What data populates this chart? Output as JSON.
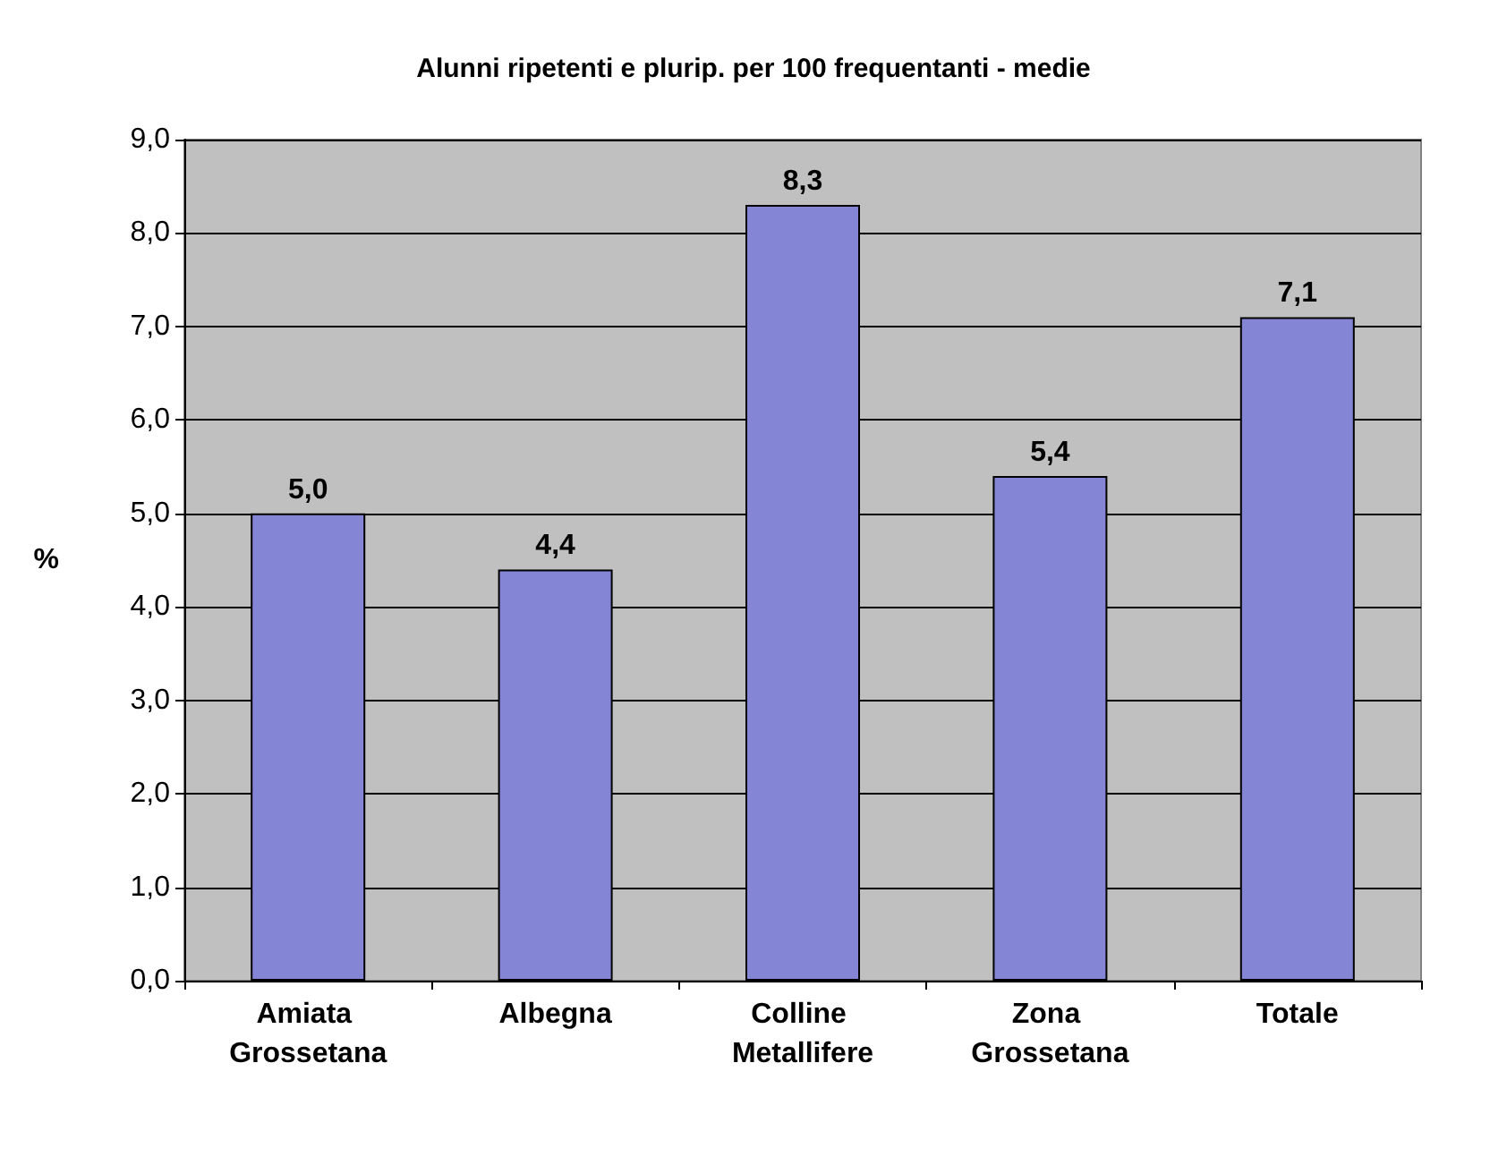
{
  "chart_data": {
    "type": "bar",
    "title": "Alunni ripetenti e plurip. per 100 frequentanti - medie",
    "ylabel": "%",
    "categories": [
      "Amiata Grossetana",
      "Albegna",
      "Colline Metallifere",
      "Zona Grossetana",
      "Totale"
    ],
    "values": [
      5.0,
      4.4,
      8.3,
      5.4,
      7.1
    ],
    "color": "#8585d6",
    "value_labels": [
      "5,0",
      "4,4",
      "8,3",
      "5,4",
      "7,1"
    ],
    "ylim": [
      0,
      9
    ],
    "yticks": [
      {
        "value": 0,
        "label": "0,0"
      },
      {
        "value": 1,
        "label": "1,0"
      },
      {
        "value": 2,
        "label": "2,0"
      },
      {
        "value": 3,
        "label": "3,0"
      },
      {
        "value": 4,
        "label": "4,0"
      },
      {
        "value": 5,
        "label": "5,0"
      },
      {
        "value": 6,
        "label": "6,0"
      },
      {
        "value": 7,
        "label": "7,0"
      },
      {
        "value": 8,
        "label": "8,0"
      },
      {
        "value": 9,
        "label": "9,0"
      }
    ],
    "grid": true
  }
}
